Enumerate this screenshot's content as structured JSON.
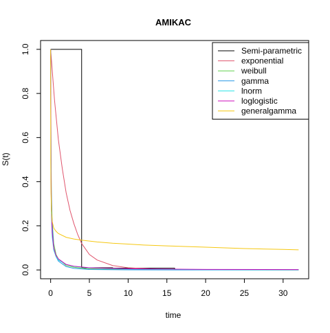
{
  "chart_data": {
    "type": "line",
    "title": "AMIKAC",
    "xlabel": "time",
    "ylabel": "S(t)",
    "xlim": [
      -1.3,
      33.3
    ],
    "ylim": [
      -0.04,
      1.04
    ],
    "x_ticks": [
      0,
      5,
      10,
      15,
      20,
      25,
      30
    ],
    "y_ticks": [
      0.0,
      0.2,
      0.4,
      0.6,
      0.8,
      1.0
    ],
    "x_tick_labels": [
      "0",
      "5",
      "10",
      "15",
      "20",
      "25",
      "30"
    ],
    "y_tick_labels": [
      "0.0",
      "0.2",
      "0.4",
      "0.6",
      "0.8",
      "1.0"
    ],
    "grid": false,
    "legend_position": "top-right",
    "series": [
      {
        "name": "Semi-parametric",
        "color": "#000000",
        "step": true,
        "points": [
          [
            0,
            1.0
          ],
          [
            4,
            1.0
          ],
          [
            4,
            0.01
          ],
          [
            8,
            0.01
          ],
          [
            8,
            0.008
          ],
          [
            16,
            0.008
          ],
          [
            16,
            0.005
          ]
        ]
      },
      {
        "name": "exponential",
        "color": "#DF536B",
        "points": [
          [
            0,
            1.0
          ],
          [
            0.5,
            0.77
          ],
          [
            1,
            0.59
          ],
          [
            1.5,
            0.46
          ],
          [
            2,
            0.35
          ],
          [
            2.5,
            0.27
          ],
          [
            3,
            0.21
          ],
          [
            3.5,
            0.16
          ],
          [
            4,
            0.12
          ],
          [
            5,
            0.07
          ],
          [
            6,
            0.045
          ],
          [
            8,
            0.02
          ],
          [
            10,
            0.01
          ],
          [
            14,
            0.003
          ],
          [
            20,
            0.0008
          ],
          [
            32,
            0.0
          ]
        ]
      },
      {
        "name": "weibull",
        "color": "#61D04F",
        "points": [
          [
            0,
            1.0
          ],
          [
            0.05,
            0.55
          ],
          [
            0.1,
            0.35
          ],
          [
            0.2,
            0.22
          ],
          [
            0.4,
            0.12
          ],
          [
            0.7,
            0.07
          ],
          [
            1,
            0.05
          ],
          [
            2,
            0.02
          ],
          [
            3,
            0.012
          ],
          [
            5,
            0.005
          ],
          [
            10,
            0.001
          ],
          [
            32,
            0.0
          ]
        ]
      },
      {
        "name": "gamma",
        "color": "#2297E6",
        "points": [
          [
            0,
            1.0
          ],
          [
            0.05,
            0.5
          ],
          [
            0.1,
            0.32
          ],
          [
            0.2,
            0.2
          ],
          [
            0.4,
            0.1
          ],
          [
            0.7,
            0.06
          ],
          [
            1,
            0.04
          ],
          [
            2,
            0.015
          ],
          [
            3,
            0.007
          ],
          [
            5,
            0.002
          ],
          [
            10,
            0.0003
          ],
          [
            32,
            0.0
          ]
        ]
      },
      {
        "name": "lnorm",
        "color": "#28E2E5",
        "points": [
          [
            0,
            1.0
          ],
          [
            0.05,
            0.4
          ],
          [
            0.1,
            0.25
          ],
          [
            0.2,
            0.15
          ],
          [
            0.4,
            0.09
          ],
          [
            0.7,
            0.06
          ],
          [
            1,
            0.045
          ],
          [
            2,
            0.025
          ],
          [
            3,
            0.016
          ],
          [
            5,
            0.009
          ],
          [
            10,
            0.004
          ],
          [
            20,
            0.0015
          ],
          [
            32,
            0.0008
          ]
        ]
      },
      {
        "name": "loglogistic",
        "color": "#CD0BBC",
        "points": [
          [
            0,
            1.0
          ],
          [
            0.05,
            0.45
          ],
          [
            0.1,
            0.28
          ],
          [
            0.2,
            0.17
          ],
          [
            0.4,
            0.1
          ],
          [
            0.7,
            0.065
          ],
          [
            1,
            0.05
          ],
          [
            2,
            0.025
          ],
          [
            3,
            0.017
          ],
          [
            5,
            0.01
          ],
          [
            10,
            0.005
          ],
          [
            20,
            0.0025
          ],
          [
            32,
            0.0015
          ]
        ]
      },
      {
        "name": "generalgamma",
        "color": "#F5C710",
        "points": [
          [
            0,
            1.0
          ],
          [
            0.02,
            0.5
          ],
          [
            0.05,
            0.35
          ],
          [
            0.1,
            0.27
          ],
          [
            0.2,
            0.22
          ],
          [
            0.4,
            0.19
          ],
          [
            0.7,
            0.175
          ],
          [
            1,
            0.165
          ],
          [
            2,
            0.148
          ],
          [
            3,
            0.14
          ],
          [
            4,
            0.135
          ],
          [
            6,
            0.127
          ],
          [
            8,
            0.121
          ],
          [
            10,
            0.117
          ],
          [
            12,
            0.113
          ],
          [
            15,
            0.109
          ],
          [
            20,
            0.103
          ],
          [
            25,
            0.097
          ],
          [
            30,
            0.093
          ],
          [
            32,
            0.091
          ]
        ]
      }
    ]
  }
}
